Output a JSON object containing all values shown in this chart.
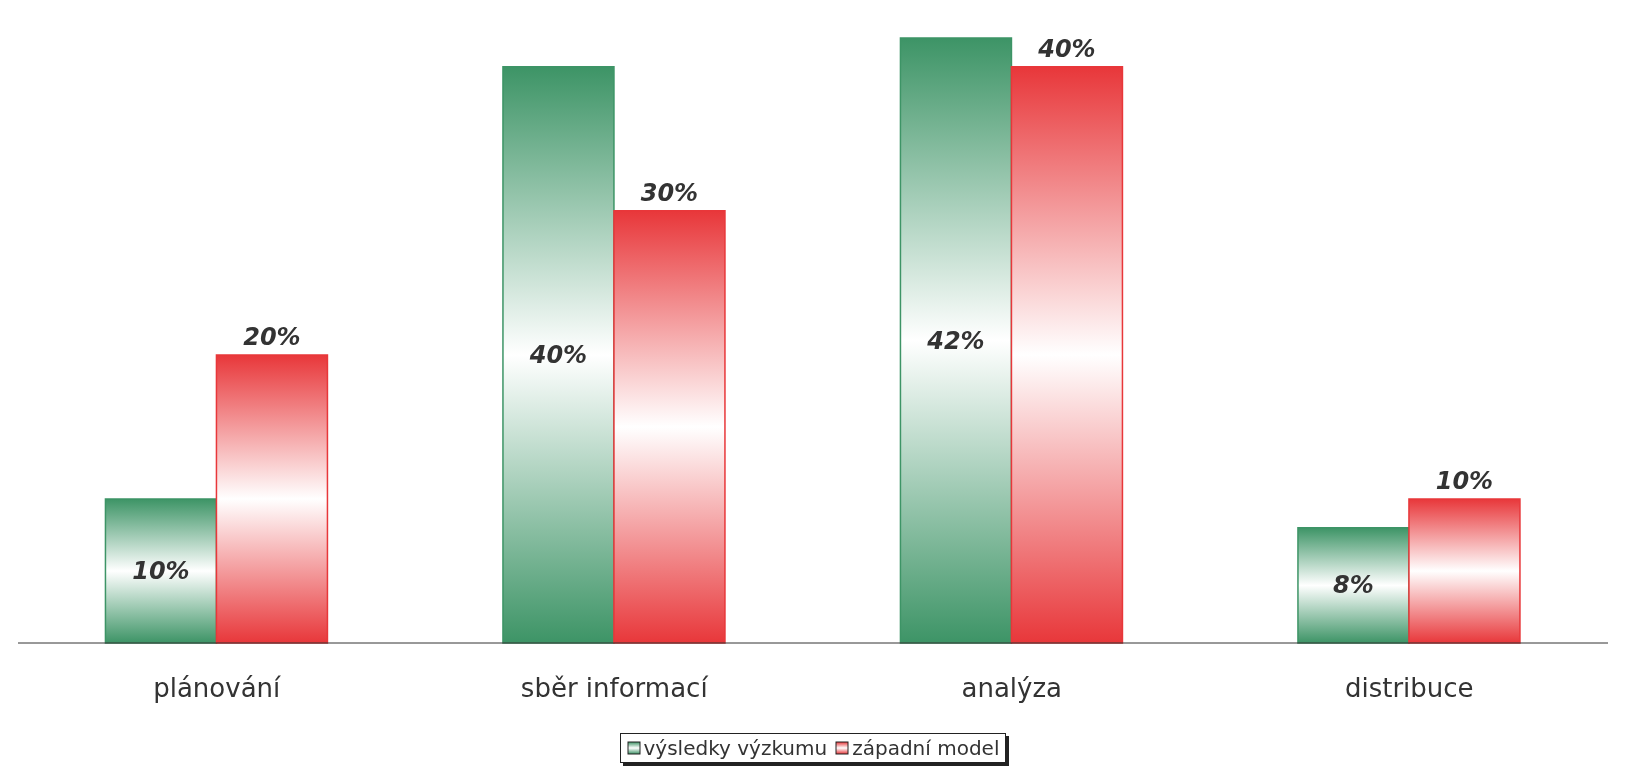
{
  "chart_data": {
    "type": "bar",
    "categories": [
      "plánování",
      "sběr informací",
      "analýza",
      "distribuce"
    ],
    "series": [
      {
        "name": "výsledky výzkumu",
        "color": "#3d9466",
        "values": [
          10,
          40,
          42,
          8
        ],
        "value_labels": [
          "10%",
          "40%",
          "42%",
          "8%"
        ]
      },
      {
        "name": "západní model",
        "color": "#e8373a",
        "values": [
          20,
          30,
          40,
          10
        ],
        "value_labels": [
          "20%",
          "30%",
          "40%",
          "10%"
        ]
      }
    ],
    "legend": "bottom",
    "grid": false
  }
}
